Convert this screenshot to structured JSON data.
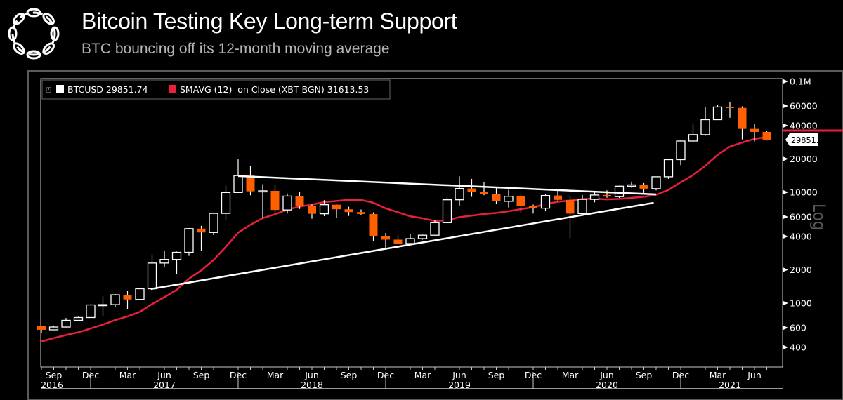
{
  "header": {
    "title": "Bitcoin Testing Key Long-term Support",
    "subtitle": "BTC bouncing off its 12-month moving average"
  },
  "colors": {
    "up_candle": "#ffffff",
    "down_candle": "#ff5f00",
    "sma": "#e8203a",
    "trendline": "#ffffff",
    "background": "#000000"
  },
  "chart_data": {
    "type": "candlestick",
    "title": "Bitcoin Testing Key Long-term Support",
    "y_scale": "log",
    "y_scale_label": "Log",
    "ylim": [
      300,
      110000
    ],
    "legend": [
      {
        "label": "BTCUSD 29851.74",
        "color": "#ffffff"
      },
      {
        "label": "SMAVG (12)  on Close (XBT BGN) 31613.53",
        "color": "#e8203a"
      }
    ],
    "last_price_label": "29851.74",
    "y_ticks": [
      {
        "value": 100000,
        "label": "0.1M"
      },
      {
        "value": 60000,
        "label": "60000"
      },
      {
        "value": 40000,
        "label": "40000"
      },
      {
        "value": 20000,
        "label": "20000"
      },
      {
        "value": 10000,
        "label": "10000"
      },
      {
        "value": 6000,
        "label": "6000"
      },
      {
        "value": 4000,
        "label": "4000"
      },
      {
        "value": 2000,
        "label": "2000"
      },
      {
        "value": 1000,
        "label": "1000"
      },
      {
        "value": 600,
        "label": "600"
      },
      {
        "value": 400,
        "label": "400"
      }
    ],
    "x_month_ticks": [
      {
        "i": 1,
        "label": "Sep"
      },
      {
        "i": 4,
        "label": "Dec"
      },
      {
        "i": 7,
        "label": "Mar"
      },
      {
        "i": 10,
        "label": "Jun"
      },
      {
        "i": 13,
        "label": "Sep"
      },
      {
        "i": 16,
        "label": "Dec"
      },
      {
        "i": 19,
        "label": "Mar"
      },
      {
        "i": 22,
        "label": "Jun"
      },
      {
        "i": 25,
        "label": "Sep"
      },
      {
        "i": 28,
        "label": "Dec"
      },
      {
        "i": 31,
        "label": "Mar"
      },
      {
        "i": 34,
        "label": "Jun"
      },
      {
        "i": 37,
        "label": "Sep"
      },
      {
        "i": 40,
        "label": "Dec"
      },
      {
        "i": 43,
        "label": "Mar"
      },
      {
        "i": 46,
        "label": "Jun"
      },
      {
        "i": 49,
        "label": "Sep"
      },
      {
        "i": 52,
        "label": "Dec"
      },
      {
        "i": 55,
        "label": "Mar"
      },
      {
        "i": 58,
        "label": "Jun"
      }
    ],
    "x_years": [
      {
        "label": "2016",
        "from": 0,
        "to": 4
      },
      {
        "label": "2017",
        "from": 4,
        "to": 16
      },
      {
        "label": "2018",
        "from": 16,
        "to": 28
      },
      {
        "label": "2019",
        "from": 28,
        "to": 40
      },
      {
        "label": "2020",
        "from": 40,
        "to": 52
      },
      {
        "label": "2021",
        "from": 52,
        "to": 60
      }
    ],
    "period": "monthly, Aug 2016 - Jul 2021",
    "ohlc": [
      [
        624,
        626,
        540,
        575
      ],
      [
        575,
        628,
        570,
        609
      ],
      [
        609,
        735,
        604,
        700
      ],
      [
        700,
        755,
        690,
        742
      ],
      [
        742,
        975,
        740,
        964
      ],
      [
        964,
        1150,
        760,
        970
      ],
      [
        970,
        1210,
        920,
        1190
      ],
      [
        1190,
        1290,
        890,
        1080
      ],
      [
        1080,
        1350,
        1060,
        1348
      ],
      [
        1348,
        2760,
        1348,
        2300
      ],
      [
        2300,
        2980,
        2100,
        2480
      ],
      [
        2480,
        2920,
        1840,
        2875
      ],
      [
        2875,
        4760,
        2670,
        4700
      ],
      [
        4700,
        4980,
        2980,
        4340
      ],
      [
        4340,
        6470,
        4110,
        6450
      ],
      [
        6450,
        11500,
        5550,
        9950
      ],
      [
        9950,
        19800,
        9950,
        14150
      ],
      [
        14150,
        17200,
        9400,
        10200
      ],
      [
        10200,
        11800,
        5900,
        10300
      ],
      [
        10300,
        11700,
        6600,
        6930
      ],
      [
        6930,
        9760,
        6430,
        9240
      ],
      [
        9240,
        9990,
        7070,
        7500
      ],
      [
        7500,
        7760,
        5780,
        6400
      ],
      [
        6400,
        8490,
        6100,
        7730
      ],
      [
        7730,
        7760,
        5880,
        7030
      ],
      [
        7030,
        7400,
        6120,
        6630
      ],
      [
        6630,
        7000,
        6200,
        6370
      ],
      [
        6370,
        6600,
        3650,
        4020
      ],
      [
        4020,
        4300,
        3150,
        3740
      ],
      [
        3740,
        4100,
        3400,
        3450
      ],
      [
        3450,
        4200,
        3400,
        3820
      ],
      [
        3820,
        4150,
        3740,
        4100
      ],
      [
        4100,
        5600,
        4090,
        5320
      ],
      [
        5320,
        9000,
        5320,
        8560
      ],
      [
        8560,
        13900,
        7500,
        10820
      ],
      [
        10820,
        13200,
        9100,
        10080
      ],
      [
        10080,
        12300,
        9400,
        9600
      ],
      [
        9600,
        10900,
        7800,
        8290
      ],
      [
        8290,
        10500,
        7300,
        9200
      ],
      [
        9200,
        9500,
        6550,
        7560
      ],
      [
        7560,
        7750,
        6430,
        7190
      ],
      [
        7190,
        9580,
        6850,
        9350
      ],
      [
        9350,
        10500,
        8440,
        8540
      ],
      [
        8540,
        9190,
        3860,
        6420
      ],
      [
        6420,
        9460,
        6180,
        8630
      ],
      [
        8630,
        10080,
        8120,
        9450
      ],
      [
        9450,
        10400,
        8920,
        9140
      ],
      [
        9140,
        11450,
        8900,
        11350
      ],
      [
        11350,
        12480,
        10990,
        11660
      ],
      [
        11660,
        12100,
        9880,
        10780
      ],
      [
        10780,
        13860,
        10400,
        13800
      ],
      [
        13800,
        19900,
        13200,
        19700
      ],
      [
        19700,
        29300,
        17600,
        28990
      ],
      [
        28990,
        41900,
        28100,
        33100
      ],
      [
        33100,
        58300,
        32300,
        45200
      ],
      [
        45200,
        61700,
        45000,
        58800
      ],
      [
        58800,
        64800,
        47000,
        57700
      ],
      [
        57700,
        59500,
        30000,
        37300
      ],
      [
        37300,
        41300,
        28800,
        35040
      ],
      [
        35040,
        35900,
        29300,
        29852
      ]
    ],
    "sma12": [
      452,
      484,
      516,
      546,
      591,
      641,
      704,
      759,
      834,
      981,
      1132,
      1319,
      1663,
      1974,
      2453,
      3221,
      4319,
      5089,
      5848,
      6335,
      6993,
      7426,
      7753,
      8158,
      8352,
      8543,
      8536,
      8042,
      7174,
      6612,
      6072,
      5836,
      5509,
      5598,
      5966,
      6162,
      6376,
      6514,
      6750,
      7045,
      7333,
      7824,
      8218,
      8411,
      8687,
      8761,
      8621,
      8727,
      8898,
      9106,
      9489,
      10501,
      12318,
      14297,
      17352,
      21717,
      25806,
      28127,
      30285,
      31614
    ],
    "trendlines": [
      {
        "name": "resistance",
        "points": [
          [
            16,
            14000
          ],
          [
            50,
            9570
          ]
        ]
      },
      {
        "name": "support",
        "points": [
          [
            8.9,
            1340
          ],
          [
            49.8,
            8040
          ]
        ]
      }
    ]
  }
}
